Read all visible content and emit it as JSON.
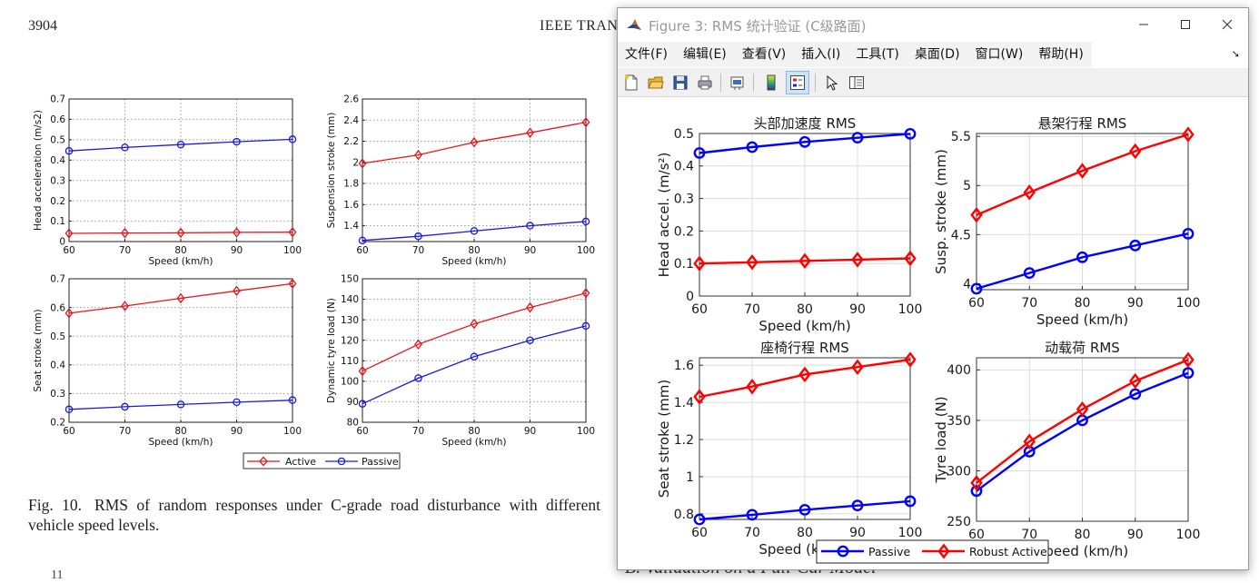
{
  "paper": {
    "page_number": "3904",
    "journal_header": "IEEE TRAN",
    "caption_number": "Fig. 10.",
    "caption_text": "RMS of random responses under C-grade road disturbance with different vehicle speed levels.",
    "bottom_left_text": "11",
    "bottom_right_text": "B.  Validation on a Full-Car Model"
  },
  "paper_figure": {
    "xlabel": "Speed (km/h)",
    "legend": [
      "Active",
      "Passive"
    ],
    "colors": {
      "active": "#e8141c",
      "passive": "#1a1adb"
    },
    "panels": [
      {
        "ylabel": "Head acceleration (m/s2)",
        "x": [
          60,
          70,
          80,
          90,
          100
        ],
        "xticks": [
          "60",
          "70",
          "80",
          "90",
          "100"
        ],
        "ylim": [
          0,
          0.7
        ],
        "yticks": [
          "0",
          "0.1",
          "0.2",
          "0.3",
          "0.4",
          "0.5",
          "0.6",
          "0.7"
        ],
        "active": [
          0.04,
          0.042,
          0.043,
          0.045,
          0.046
        ],
        "passive": [
          0.445,
          0.462,
          0.476,
          0.49,
          0.502
        ]
      },
      {
        "ylabel": "Suspension stroke (mm)",
        "x": [
          60,
          70,
          80,
          90,
          100
        ],
        "xticks": [
          "60",
          "70",
          "80",
          "90",
          "100"
        ],
        "ylim": [
          1.25,
          2.6
        ],
        "yticks": [
          "1.4",
          "1.6",
          "1.8",
          "2",
          "2.2",
          "2.4",
          "2.6"
        ],
        "active": [
          1.99,
          2.07,
          2.19,
          2.28,
          2.38
        ],
        "passive": [
          1.26,
          1.3,
          1.35,
          1.4,
          1.44
        ]
      },
      {
        "ylabel": "Seat stroke (mm)",
        "x": [
          60,
          70,
          80,
          90,
          100
        ],
        "xticks": [
          "60",
          "70",
          "80",
          "90",
          "100"
        ],
        "ylim": [
          0.2,
          0.7
        ],
        "yticks": [
          "0.2",
          "0.3",
          "0.4",
          "0.5",
          "0.6",
          "0.7"
        ],
        "active": [
          0.58,
          0.605,
          0.632,
          0.658,
          0.683
        ],
        "passive": [
          0.245,
          0.254,
          0.262,
          0.27,
          0.277
        ]
      },
      {
        "ylabel": "Dynamic tyre load (N)",
        "x": [
          60,
          70,
          80,
          90,
          100
        ],
        "xticks": [
          "60",
          "70",
          "80",
          "90",
          "100"
        ],
        "ylim": [
          80,
          150
        ],
        "yticks": [
          "80",
          "90",
          "100",
          "110",
          "120",
          "130",
          "140",
          "150"
        ],
        "active": [
          105,
          118,
          128,
          136,
          143
        ],
        "passive": [
          89,
          101.5,
          112,
          120,
          127
        ]
      }
    ]
  },
  "window": {
    "title": "Figure 3: RMS 统计验证 (C级路面)",
    "controls": {
      "minimize": "minimize",
      "maximize": "maximize",
      "close": "close"
    },
    "menu": [
      "文件(F)",
      "编辑(E)",
      "查看(V)",
      "插入(I)",
      "工具(T)",
      "桌面(D)",
      "窗口(W)",
      "帮助(H)"
    ],
    "toolbar_icons": [
      "new-figure-icon",
      "open-folder-icon",
      "save-icon",
      "print-icon",
      "link-plot-icon",
      "colorbar-icon",
      "legend-icon",
      "pointer-icon",
      "property-editor-icon"
    ]
  },
  "matlab_figure": {
    "xlabel": "Speed (km/h)",
    "legend": [
      "Passive",
      "Robust Active"
    ],
    "colors": {
      "passive": "#0000ff",
      "active": "#ff0000"
    },
    "panels": [
      {
        "title": "头部加速度 RMS",
        "ylabel": "Head accel. (m/s²)",
        "x": [
          60,
          70,
          80,
          90,
          100
        ],
        "xticks": [
          "60",
          "70",
          "80",
          "90",
          "100"
        ],
        "ylim": [
          0,
          0.5
        ],
        "yticks": [
          "0",
          "0.1",
          "0.2",
          "0.3",
          "0.4",
          "0.5"
        ],
        "passive": [
          0.44,
          0.458,
          0.474,
          0.487,
          0.499
        ],
        "active": [
          0.1,
          0.104,
          0.108,
          0.112,
          0.116
        ]
      },
      {
        "title": "悬架行程 RMS",
        "ylabel": "Susp. stroke (mm)",
        "x": [
          60,
          70,
          80,
          90,
          100
        ],
        "xticks": [
          "60",
          "70",
          "80",
          "90",
          "100"
        ],
        "ylim": [
          3.94,
          5.53
        ],
        "yticks": [
          "4",
          "4.5",
          "5",
          "5.5"
        ],
        "passive": [
          3.95,
          4.11,
          4.27,
          4.39,
          4.51
        ],
        "active": [
          4.7,
          4.93,
          5.15,
          5.35,
          5.52
        ]
      },
      {
        "title": "座椅行程 RMS",
        "ylabel": "Seat stroke (mm)",
        "x": [
          60,
          70,
          80,
          90,
          100
        ],
        "xticks": [
          "60",
          "70",
          "80",
          "90",
          "100"
        ],
        "ylim": [
          0.77,
          1.64
        ],
        "yticks": [
          "0.8",
          "1",
          "1.2",
          "1.4",
          "1.6"
        ],
        "passive": [
          0.77,
          0.795,
          0.822,
          0.845,
          0.868
        ],
        "active": [
          1.43,
          1.485,
          1.55,
          1.59,
          1.63
        ]
      },
      {
        "title": "动载荷 RMS",
        "ylabel": "Tyre load (N)",
        "x": [
          60,
          70,
          80,
          90,
          100
        ],
        "xticks": [
          "60",
          "70",
          "80",
          "90",
          "100"
        ],
        "ylim": [
          250,
          412
        ],
        "yticks": [
          "250",
          "300",
          "350",
          "400"
        ],
        "passive": [
          280,
          319,
          350,
          376,
          397
        ],
        "active": [
          288,
          329,
          361,
          389,
          410
        ]
      }
    ]
  },
  "chart_data": [
    {
      "type": "line",
      "title": "",
      "xlabel": "Speed (km/h)",
      "ylabel": "Head acceleration (m/s2)",
      "x": [
        60,
        70,
        80,
        90,
        100
      ],
      "ylim": [
        0,
        0.7
      ],
      "series": [
        {
          "name": "Active",
          "values": [
            0.04,
            0.042,
            0.043,
            0.045,
            0.046
          ]
        },
        {
          "name": "Passive",
          "values": [
            0.445,
            0.462,
            0.476,
            0.49,
            0.502
          ]
        }
      ]
    },
    {
      "type": "line",
      "title": "",
      "xlabel": "Speed (km/h)",
      "ylabel": "Suspension stroke (mm)",
      "x": [
        60,
        70,
        80,
        90,
        100
      ],
      "ylim": [
        1.25,
        2.6
      ],
      "series": [
        {
          "name": "Active",
          "values": [
            1.99,
            2.07,
            2.19,
            2.28,
            2.38
          ]
        },
        {
          "name": "Passive",
          "values": [
            1.26,
            1.3,
            1.35,
            1.4,
            1.44
          ]
        }
      ]
    },
    {
      "type": "line",
      "title": "",
      "xlabel": "Speed (km/h)",
      "ylabel": "Seat stroke (mm)",
      "x": [
        60,
        70,
        80,
        90,
        100
      ],
      "ylim": [
        0.2,
        0.7
      ],
      "series": [
        {
          "name": "Active",
          "values": [
            0.58,
            0.605,
            0.632,
            0.658,
            0.683
          ]
        },
        {
          "name": "Passive",
          "values": [
            0.245,
            0.254,
            0.262,
            0.27,
            0.277
          ]
        }
      ]
    },
    {
      "type": "line",
      "title": "",
      "xlabel": "Speed (km/h)",
      "ylabel": "Dynamic tyre load (N)",
      "x": [
        60,
        70,
        80,
        90,
        100
      ],
      "ylim": [
        80,
        150
      ],
      "series": [
        {
          "name": "Active",
          "values": [
            105,
            118,
            128,
            136,
            143
          ]
        },
        {
          "name": "Passive",
          "values": [
            89,
            101.5,
            112,
            120,
            127
          ]
        }
      ]
    },
    {
      "type": "line",
      "title": "头部加速度 RMS",
      "xlabel": "Speed (km/h)",
      "ylabel": "Head accel. (m/s²)",
      "x": [
        60,
        70,
        80,
        90,
        100
      ],
      "ylim": [
        0,
        0.5
      ],
      "series": [
        {
          "name": "Passive",
          "values": [
            0.44,
            0.458,
            0.474,
            0.487,
            0.499
          ]
        },
        {
          "name": "Robust Active",
          "values": [
            0.1,
            0.104,
            0.108,
            0.112,
            0.116
          ]
        }
      ]
    },
    {
      "type": "line",
      "title": "悬架行程 RMS",
      "xlabel": "Speed (km/h)",
      "ylabel": "Susp. stroke (mm)",
      "x": [
        60,
        70,
        80,
        90,
        100
      ],
      "ylim": [
        3.94,
        5.53
      ],
      "series": [
        {
          "name": "Passive",
          "values": [
            3.95,
            4.11,
            4.27,
            4.39,
            4.51
          ]
        },
        {
          "name": "Robust Active",
          "values": [
            4.7,
            4.93,
            5.15,
            5.35,
            5.52
          ]
        }
      ]
    },
    {
      "type": "line",
      "title": "座椅行程 RMS",
      "xlabel": "Speed (km/h)",
      "ylabel": "Seat stroke (mm)",
      "x": [
        60,
        70,
        80,
        90,
        100
      ],
      "ylim": [
        0.77,
        1.64
      ],
      "series": [
        {
          "name": "Passive",
          "values": [
            0.77,
            0.795,
            0.822,
            0.845,
            0.868
          ]
        },
        {
          "name": "Robust Active",
          "values": [
            1.43,
            1.485,
            1.55,
            1.59,
            1.63
          ]
        }
      ]
    },
    {
      "type": "line",
      "title": "动载荷 RMS",
      "xlabel": "Speed (km/h)",
      "ylabel": "Tyre load (N)",
      "x": [
        60,
        70,
        80,
        90,
        100
      ],
      "ylim": [
        250,
        412
      ],
      "series": [
        {
          "name": "Passive",
          "values": [
            280,
            319,
            350,
            376,
            397
          ]
        },
        {
          "name": "Robust Active",
          "values": [
            288,
            329,
            361,
            389,
            410
          ]
        }
      ]
    }
  ]
}
